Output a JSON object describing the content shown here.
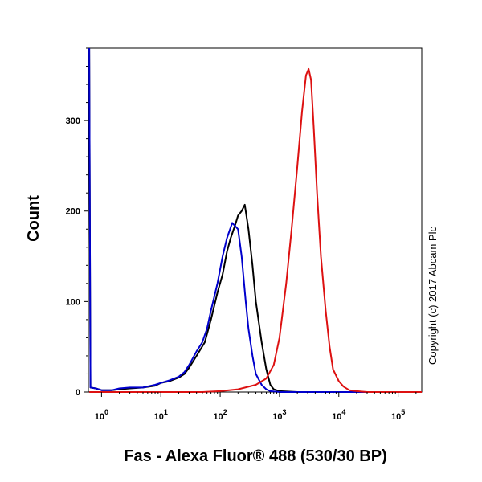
{
  "chart_data": {
    "type": "line",
    "title": "",
    "xlabel": "Fas - Alexa Fluor® 488 (530/30 BP)",
    "ylabel": "Count",
    "x_scale": "log",
    "xlim": [
      0.6,
      250000
    ],
    "ylim": [
      0,
      380
    ],
    "x_ticks": [
      {
        "value": 1,
        "base": "10",
        "exp": "0"
      },
      {
        "value": 10,
        "base": "10",
        "exp": "1"
      },
      {
        "value": 100,
        "base": "10",
        "exp": "2"
      },
      {
        "value": 1000,
        "base": "10",
        "exp": "3"
      },
      {
        "value": 10000,
        "base": "10",
        "exp": "4"
      },
      {
        "value": 100000,
        "base": "10",
        "exp": "5"
      }
    ],
    "y_ticks": [
      0,
      100,
      200,
      300
    ],
    "grid": false,
    "series": [
      {
        "color": "#000000",
        "points": [
          [
            0.62,
            380
          ],
          [
            0.65,
            5
          ],
          [
            0.8,
            4
          ],
          [
            1.0,
            2
          ],
          [
            1.5,
            2
          ],
          [
            2.0,
            3
          ],
          [
            3.0,
            4
          ],
          [
            5.0,
            5
          ],
          [
            8.0,
            7
          ],
          [
            10,
            10
          ],
          [
            14,
            12
          ],
          [
            20,
            16
          ],
          [
            25,
            20
          ],
          [
            30,
            27
          ],
          [
            40,
            40
          ],
          [
            55,
            55
          ],
          [
            70,
            80
          ],
          [
            90,
            110
          ],
          [
            110,
            130
          ],
          [
            130,
            155
          ],
          [
            150,
            170
          ],
          [
            180,
            185
          ],
          [
            200,
            195
          ],
          [
            230,
            200
          ],
          [
            260,
            207
          ],
          [
            300,
            180
          ],
          [
            350,
            140
          ],
          [
            400,
            100
          ],
          [
            500,
            55
          ],
          [
            600,
            25
          ],
          [
            700,
            8
          ],
          [
            800,
            3
          ],
          [
            1000,
            1
          ],
          [
            2000,
            0
          ],
          [
            250000,
            0
          ]
        ]
      },
      {
        "color": "#0000cc",
        "points": [
          [
            0.62,
            380
          ],
          [
            0.65,
            5
          ],
          [
            0.8,
            4
          ],
          [
            1.0,
            2
          ],
          [
            1.5,
            2
          ],
          [
            2.0,
            4
          ],
          [
            3.0,
            5
          ],
          [
            5.0,
            5
          ],
          [
            8.0,
            8
          ],
          [
            10,
            10
          ],
          [
            14,
            13
          ],
          [
            20,
            17
          ],
          [
            25,
            22
          ],
          [
            30,
            30
          ],
          [
            40,
            45
          ],
          [
            50,
            55
          ],
          [
            60,
            70
          ],
          [
            70,
            90
          ],
          [
            90,
            120
          ],
          [
            110,
            150
          ],
          [
            130,
            170
          ],
          [
            160,
            187
          ],
          [
            200,
            180
          ],
          [
            230,
            150
          ],
          [
            270,
            100
          ],
          [
            300,
            70
          ],
          [
            350,
            40
          ],
          [
            400,
            20
          ],
          [
            500,
            8
          ],
          [
            600,
            3
          ],
          [
            700,
            1
          ],
          [
            1000,
            0
          ],
          [
            250000,
            0
          ]
        ]
      },
      {
        "color": "#dd1111",
        "points": [
          [
            0.62,
            0
          ],
          [
            50,
            0
          ],
          [
            100,
            1
          ],
          [
            200,
            3
          ],
          [
            400,
            8
          ],
          [
            600,
            15
          ],
          [
            800,
            30
          ],
          [
            1000,
            60
          ],
          [
            1300,
            120
          ],
          [
            1600,
            180
          ],
          [
            2000,
            250
          ],
          [
            2400,
            310
          ],
          [
            2800,
            350
          ],
          [
            3100,
            357
          ],
          [
            3400,
            345
          ],
          [
            3800,
            290
          ],
          [
            4300,
            220
          ],
          [
            5000,
            150
          ],
          [
            6000,
            90
          ],
          [
            7000,
            50
          ],
          [
            8000,
            25
          ],
          [
            10000,
            12
          ],
          [
            12000,
            6
          ],
          [
            15000,
            2
          ],
          [
            20000,
            1
          ],
          [
            30000,
            0
          ],
          [
            250000,
            0
          ]
        ]
      }
    ]
  },
  "copyright": "Copyright (c) 2017 Abcam Plc"
}
